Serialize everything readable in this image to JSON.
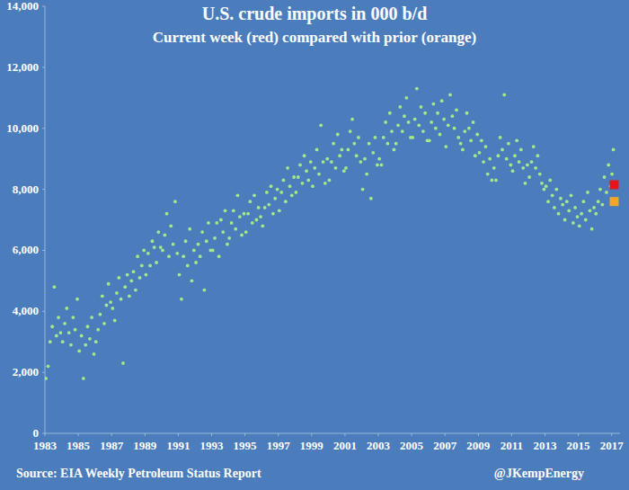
{
  "chart_data": {
    "type": "scatter",
    "title": "U.S. crude imports in 000 b/d",
    "subtitle": "Current week (red) compared with prior (orange)",
    "source": "Source: EIA Weekly Petroleum Status Report",
    "credit": "@JKempEnergy",
    "grid": false,
    "xlim": [
      1983,
      2017.5
    ],
    "xticks": [
      1983,
      1985,
      1987,
      1989,
      1991,
      1993,
      1995,
      1997,
      1999,
      2001,
      2003,
      2005,
      2007,
      2009,
      2011,
      2013,
      2015,
      2017
    ],
    "ylim": [
      0,
      14000
    ],
    "yticks": [
      0,
      {
        "value": 2000,
        "label": "2,000"
      },
      {
        "value": 4000,
        "label": "4,000"
      },
      {
        "value": 6000,
        "label": "6,000"
      },
      {
        "value": 8000,
        "label": "8,000"
      },
      {
        "value": 10000,
        "label": "10,000"
      },
      {
        "value": 12000,
        "label": "12,000"
      },
      {
        "value": 14000,
        "label": "14,000"
      }
    ],
    "series": [
      {
        "color": "#a3e88a",
        "marker": "circle",
        "x": [
          1983.06,
          1983.19,
          1983.31,
          1983.44,
          1983.56,
          1983.69,
          1983.81,
          1983.94,
          1984.06,
          1984.19,
          1984.31,
          1984.44,
          1984.56,
          1984.69,
          1984.81,
          1984.94,
          1985.06,
          1985.19,
          1985.31,
          1985.44,
          1985.56,
          1985.69,
          1985.81,
          1985.94,
          1986.06,
          1986.19,
          1986.31,
          1986.44,
          1986.56,
          1986.69,
          1986.81,
          1986.94,
          1987.06,
          1987.19,
          1987.31,
          1987.44,
          1987.56,
          1987.69,
          1987.81,
          1987.94,
          1988.06,
          1988.19,
          1988.31,
          1988.44,
          1988.56,
          1988.69,
          1988.81,
          1988.94,
          1989.06,
          1989.19,
          1989.31,
          1989.44,
          1989.56,
          1989.69,
          1989.81,
          1989.94,
          1990.06,
          1990.19,
          1990.31,
          1990.44,
          1990.56,
          1990.69,
          1990.81,
          1990.94,
          1991.06,
          1991.19,
          1991.31,
          1991.44,
          1991.56,
          1991.69,
          1991.81,
          1991.94,
          1992.06,
          1992.19,
          1992.31,
          1992.44,
          1992.56,
          1992.69,
          1992.81,
          1992.94,
          1993.06,
          1993.19,
          1993.31,
          1993.44,
          1993.56,
          1993.69,
          1993.81,
          1993.94,
          1994.06,
          1994.19,
          1994.31,
          1994.44,
          1994.56,
          1994.69,
          1994.81,
          1994.94,
          1995.06,
          1995.19,
          1995.31,
          1995.44,
          1995.56,
          1995.69,
          1995.81,
          1995.94,
          1996.06,
          1996.19,
          1996.31,
          1996.44,
          1996.56,
          1996.69,
          1996.81,
          1996.94,
          1997.06,
          1997.19,
          1997.31,
          1997.44,
          1997.56,
          1997.69,
          1997.81,
          1997.94,
          1998.06,
          1998.19,
          1998.31,
          1998.44,
          1998.56,
          1998.69,
          1998.81,
          1998.94,
          1999.06,
          1999.19,
          1999.31,
          1999.44,
          1999.56,
          1999.69,
          1999.81,
          1999.94,
          2000.06,
          2000.19,
          2000.31,
          2000.44,
          2000.56,
          2000.69,
          2000.81,
          2000.94,
          2001.06,
          2001.19,
          2001.31,
          2001.44,
          2001.56,
          2001.69,
          2001.81,
          2001.94,
          2002.06,
          2002.19,
          2002.31,
          2002.44,
          2002.56,
          2002.69,
          2002.81,
          2002.94,
          2003.06,
          2003.19,
          2003.31,
          2003.44,
          2003.56,
          2003.69,
          2003.81,
          2003.94,
          2004.06,
          2004.19,
          2004.31,
          2004.44,
          2004.56,
          2004.69,
          2004.81,
          2004.94,
          2005.06,
          2005.19,
          2005.31,
          2005.44,
          2005.56,
          2005.69,
          2005.81,
          2005.94,
          2006.06,
          2006.19,
          2006.31,
          2006.44,
          2006.56,
          2006.69,
          2006.81,
          2006.94,
          2007.06,
          2007.19,
          2007.31,
          2007.44,
          2007.56,
          2007.69,
          2007.81,
          2007.94,
          2008.06,
          2008.19,
          2008.31,
          2008.44,
          2008.56,
          2008.69,
          2008.81,
          2008.94,
          2009.06,
          2009.19,
          2009.31,
          2009.44,
          2009.56,
          2009.69,
          2009.81,
          2009.94,
          2010.06,
          2010.19,
          2010.31,
          2010.44,
          2010.56,
          2010.69,
          2010.81,
          2010.94,
          2011.06,
          2011.19,
          2011.31,
          2011.44,
          2011.56,
          2011.69,
          2011.81,
          2011.94,
          2012.06,
          2012.19,
          2012.31,
          2012.44,
          2012.56,
          2012.69,
          2012.81,
          2012.94,
          2013.06,
          2013.19,
          2013.31,
          2013.44,
          2013.56,
          2013.69,
          2013.81,
          2013.94,
          2014.06,
          2014.19,
          2014.31,
          2014.44,
          2014.56,
          2014.69,
          2014.81,
          2014.94,
          2015.06,
          2015.19,
          2015.31,
          2015.44,
          2015.56,
          2015.69,
          2015.81,
          2015.94,
          2016.06,
          2016.19,
          2016.31,
          2016.44,
          2016.56,
          2016.69,
          2016.81,
          2016.94,
          2017.02,
          2017.1
        ],
        "values": [
          1800,
          2200,
          3000,
          3500,
          4800,
          3200,
          3800,
          3300,
          3000,
          3600,
          4100,
          3300,
          2900,
          3800,
          3400,
          4400,
          2700,
          3200,
          1800,
          2900,
          3500,
          3100,
          3800,
          2600,
          3000,
          3400,
          3900,
          4500,
          3600,
          4200,
          4900,
          4300,
          4100,
          3700,
          4600,
          5100,
          4400,
          2300,
          4800,
          5200,
          4500,
          5000,
          5300,
          4700,
          5800,
          5100,
          5500,
          6000,
          5200,
          5900,
          5500,
          6300,
          6100,
          5600,
          6600,
          6100,
          6000,
          6500,
          7200,
          5800,
          6800,
          6200,
          7600,
          5900,
          5200,
          4400,
          5800,
          6300,
          5500,
          6700,
          5000,
          6000,
          5600,
          6200,
          5800,
          6600,
          4700,
          6300,
          6900,
          6000,
          6000,
          6400,
          6900,
          5800,
          7000,
          6600,
          7300,
          6200,
          6400,
          6900,
          7300,
          6700,
          7800,
          7100,
          6500,
          7200,
          6600,
          7200,
          7600,
          6900,
          7800,
          7000,
          7400,
          7100,
          6800,
          7400,
          7900,
          7500,
          8100,
          7200,
          7700,
          8000,
          7300,
          7900,
          8300,
          7600,
          8700,
          8100,
          7800,
          8400,
          7900,
          8400,
          8800,
          8200,
          9100,
          8600,
          8300,
          8900,
          8100,
          8700,
          9300,
          8500,
          10100,
          8900,
          8200,
          9000,
          8300,
          8900,
          9500,
          8700,
          9800,
          9100,
          9300,
          8600,
          8700,
          9300,
          9900,
          10300,
          9500,
          9100,
          9700,
          8900,
          8000,
          9000,
          8500,
          9500,
          7700,
          9200,
          9700,
          8800,
          9000,
          8800,
          9700,
          10200,
          9500,
          10500,
          9900,
          9300,
          9500,
          10100,
          10700,
          9900,
          10400,
          11000,
          10200,
          9700,
          9700,
          10300,
          11300,
          10100,
          10700,
          9900,
          10500,
          9600,
          9600,
          10200,
          10800,
          10000,
          10500,
          9800,
          10900,
          10300,
          9400,
          10100,
          11100,
          10400,
          10000,
          10600,
          9700,
          9500,
          9300,
          9900,
          10500,
          10000,
          9600,
          10200,
          9100,
          9800,
          9200,
          9600,
          8900,
          9400,
          8500,
          9000,
          8300,
          8700,
          8300,
          9100,
          9700,
          9300,
          11100,
          9000,
          9500,
          8800,
          8600,
          9100,
          9600,
          8900,
          9300,
          8700,
          8200,
          8800,
          8400,
          8900,
          9400,
          8700,
          9100,
          8500,
          8200,
          8000,
          8100,
          7600,
          8300,
          7800,
          7400,
          8000,
          7200,
          7700,
          7500,
          7000,
          7600,
          7300,
          7800,
          6900,
          7400,
          7100,
          6800,
          7200,
          7600,
          7000,
          7900,
          7300,
          6700,
          7400,
          7200,
          7600,
          8000,
          7500,
          8400,
          7900,
          8800,
          8100,
          8500,
          9300
        ]
      },
      {
        "color": "#f5a623",
        "marker": "square",
        "x": [
          2017.15
        ],
        "values": [
          7600
        ]
      },
      {
        "color": "#e8141b",
        "marker": "square",
        "x": [
          2017.15
        ],
        "values": [
          8150
        ]
      }
    ]
  }
}
